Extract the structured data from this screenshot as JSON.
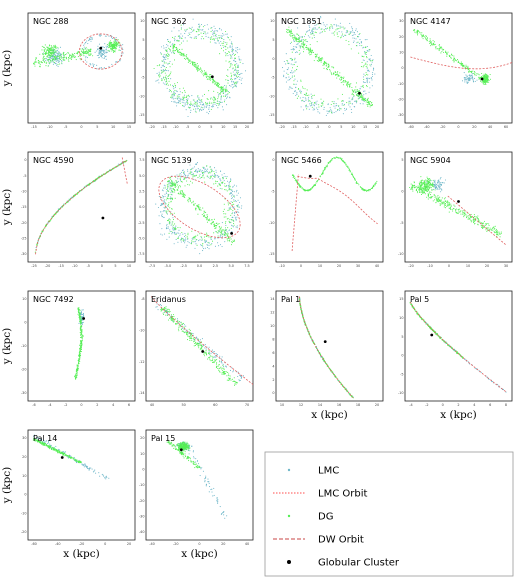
{
  "chart_data": {
    "type": "scatter",
    "legend": {
      "placement": "bottom-right",
      "entries": [
        {
          "label": "LMC",
          "kind": "points",
          "color": "#6fb7c9"
        },
        {
          "label": "LMC Orbit",
          "kind": "dotted-line",
          "color": "#ff7070"
        },
        {
          "label": "DG",
          "kind": "points",
          "color": "#55ee55"
        },
        {
          "label": "DW Orbit",
          "kind": "dashed-line",
          "color": "#d46a6a"
        },
        {
          "label": "Globular Cluster",
          "kind": "marker",
          "color": "#000000"
        }
      ]
    },
    "panels": [
      {
        "title": "NGC 288",
        "ylabel": "y (kpc)",
        "xlabel": "",
        "xticks": [
          "-15",
          "-10",
          "-5",
          "0",
          "5",
          "10",
          "15"
        ],
        "yticks": []
      },
      {
        "title": "NGC 362",
        "ylabel": "",
        "xlabel": "",
        "xticks": [
          "-20",
          "-15",
          "-10",
          "-5",
          "0",
          "5",
          "10",
          "15",
          "20"
        ],
        "yticks": [
          "10",
          "5",
          "0",
          "-5",
          "-10",
          "-15"
        ]
      },
      {
        "title": "NGC 1851",
        "ylabel": "",
        "xlabel": "",
        "xticks": [
          "-20",
          "-15",
          "-10",
          "-5",
          "0",
          "5",
          "10",
          "15",
          "20"
        ],
        "yticks": [
          "10",
          "5",
          "0",
          "-5",
          "-10",
          "-15"
        ]
      },
      {
        "title": "NGC 4147",
        "ylabel": "",
        "xlabel": "",
        "xticks": [
          "-60",
          "-40",
          "-20",
          "0",
          "20",
          "40",
          "60"
        ],
        "yticks": [
          "30",
          "20",
          "10",
          "0",
          "-10",
          "-20",
          "-30"
        ]
      },
      {
        "title": "NGC 4590",
        "ylabel": "y (kpc)",
        "xlabel": "",
        "xticks": [
          "-25",
          "-20",
          "-15",
          "-10",
          "-5",
          "0",
          "5",
          "10"
        ],
        "yticks": [
          "0",
          "-5",
          "-10",
          "-15",
          "-20",
          "-25",
          "-30"
        ]
      },
      {
        "title": "NGC 5139",
        "ylabel": "",
        "xlabel": "",
        "xticks": [
          "-7.5",
          "-5.0",
          "-2.5",
          "0.0",
          "2.5",
          "5.0",
          "7.5"
        ],
        "yticks": [
          "7.5",
          "5.0",
          "2.5",
          "0.0",
          "-2.5",
          "-5.0",
          "-7.5"
        ]
      },
      {
        "title": "NGC 5466",
        "ylabel": "",
        "xlabel": "",
        "xticks": [
          "-10",
          "0",
          "10",
          "20",
          "30",
          "40"
        ],
        "yticks": [
          "0",
          "-5",
          "-10",
          "-15"
        ]
      },
      {
        "title": "NGC 5904",
        "ylabel": "",
        "xlabel": "",
        "xticks": [
          "-20",
          "-10",
          "0",
          "10",
          "20",
          "30"
        ],
        "yticks": [
          "5",
          "0",
          "-5",
          "-10"
        ]
      },
      {
        "title": "NGC 7492",
        "ylabel": "y (kpc)",
        "xlabel": "",
        "xticks": [
          "-6",
          "-4",
          "-2",
          "0",
          "2",
          "4",
          "6"
        ],
        "yticks": [
          "10",
          "0",
          "-10",
          "-20",
          "-30"
        ]
      },
      {
        "title": "Eridanus",
        "ylabel": "",
        "xlabel": "",
        "xticks": [
          "40",
          "50",
          "60",
          "70"
        ],
        "yticks": [
          "-8",
          "-10",
          "-12",
          "-14"
        ]
      },
      {
        "title": "Pal 1",
        "ylabel": "",
        "xlabel": "x (kpc)",
        "xticks": [
          "10",
          "12",
          "14",
          "16",
          "18",
          "20"
        ],
        "yticks": [
          "14",
          "12",
          "10",
          "8",
          "6",
          "4",
          "2",
          "0"
        ]
      },
      {
        "title": "Pal 5",
        "ylabel": "",
        "xlabel": "x (kpc)",
        "xticks": [
          "-4",
          "-2",
          "0",
          "2",
          "4",
          "6",
          "8"
        ],
        "yticks": [
          "15",
          "10",
          "5",
          "0",
          "-5",
          "-10"
        ]
      },
      {
        "title": "Pal 14",
        "ylabel": "y (kpc)",
        "xlabel": "x (kpc)",
        "xticks": [
          "-60",
          "-40",
          "-20",
          "0",
          "20"
        ],
        "yticks": [
          "30",
          "20",
          "10",
          "0",
          "-10",
          "-20"
        ]
      },
      {
        "title": "Pal 15",
        "ylabel": "",
        "xlabel": "x (kpc)",
        "xticks": [
          "-40",
          "-20",
          "0",
          "20",
          "40"
        ],
        "yticks": [
          "20",
          "10",
          "0",
          "-10",
          "-20",
          "-30",
          "-40"
        ]
      }
    ]
  }
}
